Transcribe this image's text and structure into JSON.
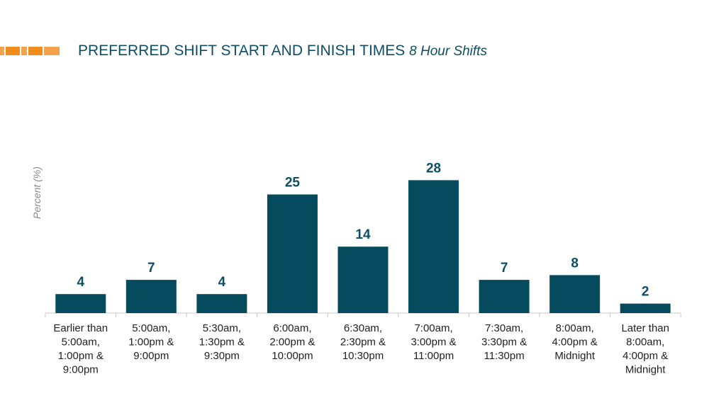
{
  "slide": {
    "title": "PREFERRED SHIFT START AND FINISH TIMES",
    "subtitle": "8 Hour Shifts",
    "accent_colors": [
      "#f5a34a",
      "#ffffff",
      "#f08c20",
      "#ffffff",
      "#f5a34a",
      "#ffffff",
      "#f08c20",
      "#ffffff",
      "#f5a34a"
    ]
  },
  "chart_data": {
    "type": "bar",
    "title": "",
    "xlabel": "",
    "ylabel": "Percent (%)",
    "ylim": [
      0,
      32
    ],
    "grid": false,
    "bar_color": "#064a5e",
    "categories": [
      [
        "Earlier than",
        "5:00am,",
        "1:00pm &",
        "9:00pm"
      ],
      [
        "5:00am,",
        "1:00pm &",
        "9:00pm"
      ],
      [
        "5:30am,",
        "1:30pm &",
        "9:30pm"
      ],
      [
        "6:00am,",
        "2:00pm &",
        "10:00pm"
      ],
      [
        "6:30am,",
        "2:30pm &",
        "10:30pm"
      ],
      [
        "7:00am,",
        "3:00pm &",
        "11:00pm"
      ],
      [
        "7:30am,",
        "3:30pm &",
        "11:30pm"
      ],
      [
        "8:00am,",
        "4:00pm &",
        "Midnight"
      ],
      [
        "Later than",
        "8:00am,",
        "4:00pm &",
        "Midnight"
      ]
    ],
    "values": [
      4,
      7,
      4,
      25,
      14,
      28,
      7,
      8,
      2
    ]
  }
}
